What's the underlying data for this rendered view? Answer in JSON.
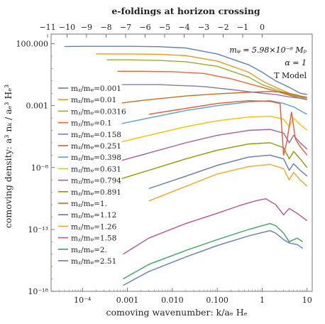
{
  "chart_data": {
    "type": "line",
    "title": "",
    "xlabel": "comoving wavenumber: k/a_e H_e",
    "ylabel": "comoving density: a^3 n_k / a_e^3 H_e^3",
    "top_axis_label": "e-foldings at horizon crossing",
    "x_scale": "log",
    "y_scale": "log",
    "xlim": [
      2e-05,
      13
    ],
    "ylim": [
      1e-18,
      600
    ],
    "x_ticks": [
      {
        "value": 0.0001,
        "label": "10^-4"
      },
      {
        "value": 0.001,
        "label": "0.001"
      },
      {
        "value": 0.01,
        "label": "0.010"
      },
      {
        "value": 0.1,
        "label": "0.100"
      },
      {
        "value": 1,
        "label": "1"
      },
      {
        "value": 10,
        "label": "10"
      }
    ],
    "y_ticks": [
      {
        "value": 100,
        "label": "100.000"
      },
      {
        "value": 0.001,
        "label": "0.001"
      },
      {
        "value": 1e-08,
        "label": "10^-8"
      },
      {
        "value": 1e-13,
        "label": "10^-13"
      },
      {
        "value": 1e-18,
        "label": "10^-18"
      }
    ],
    "top_ticks": [
      {
        "efold": -11,
        "k": 1.67e-05,
        "label": "-11"
      },
      {
        "efold": -10,
        "k": 4.54e-05,
        "label": "-10"
      },
      {
        "efold": -9,
        "k": 0.000123,
        "label": "-9"
      },
      {
        "efold": -8,
        "k": 0.000335,
        "label": "-8"
      },
      {
        "efold": -7,
        "k": 0.000912,
        "label": "-7"
      },
      {
        "efold": -6,
        "k": 0.00248,
        "label": "-6"
      },
      {
        "efold": -5,
        "k": 0.00674,
        "label": "-5"
      },
      {
        "efold": -4,
        "k": 0.0183,
        "label": "-4"
      },
      {
        "efold": -3,
        "k": 0.0498,
        "label": "-3"
      },
      {
        "efold": -2,
        "k": 0.1353,
        "label": "-2"
      },
      {
        "efold": -1,
        "k": 0.3679,
        "label": "-1"
      },
      {
        "efold": 0,
        "k": 1,
        "label": "0"
      }
    ],
    "annotations": [
      "m_φ = 5.98×10^-6 M_p",
      "α = 1",
      "T Model"
    ],
    "legend_position": "left",
    "series": [
      {
        "name": "m_χ/m_φ=0.001",
        "color": "#5e81b5",
        "points": [
          [
            4e-05,
            60
          ],
          [
            0.0002,
            62
          ],
          [
            0.001,
            62
          ],
          [
            0.005,
            58
          ],
          [
            0.02,
            45
          ],
          [
            0.1,
            15
          ],
          [
            0.5,
            2
          ],
          [
            1,
            0.5
          ],
          [
            2,
            0.1
          ],
          [
            4,
            0.03
          ],
          [
            7,
            0.01
          ],
          [
            10,
            0.008
          ]
        ]
      },
      {
        "name": "m_χ/m_φ=0.01",
        "color": "#e19c24",
        "points": [
          [
            0.0002,
            15
          ],
          [
            0.001,
            15
          ],
          [
            0.005,
            14
          ],
          [
            0.02,
            11
          ],
          [
            0.1,
            4
          ],
          [
            0.5,
            0.5
          ],
          [
            1,
            0.1
          ],
          [
            2,
            0.03
          ],
          [
            4,
            0.01
          ],
          [
            7,
            0.006
          ],
          [
            10,
            0.005
          ]
        ]
      },
      {
        "name": "m_χ/m_φ=0.0316",
        "color": "#8fb032",
        "points": [
          [
            0.00035,
            5
          ],
          [
            0.001,
            5
          ],
          [
            0.005,
            4.5
          ],
          [
            0.02,
            3.5
          ],
          [
            0.1,
            1.5
          ],
          [
            0.5,
            0.2
          ],
          [
            1,
            0.05
          ],
          [
            2,
            0.02
          ],
          [
            4,
            0.008
          ],
          [
            7,
            0.005
          ],
          [
            10,
            0.003
          ]
        ]
      },
      {
        "name": "m_χ/m_φ=0.1",
        "color": "#eb6235",
        "points": [
          [
            0.0006,
            0.6
          ],
          [
            0.002,
            0.6
          ],
          [
            0.01,
            0.55
          ],
          [
            0.05,
            0.4
          ],
          [
            0.2,
            0.15
          ],
          [
            1,
            0.03
          ],
          [
            2,
            0.015
          ],
          [
            4,
            0.007
          ],
          [
            7,
            0.004
          ],
          [
            10,
            0.003
          ]
        ]
      },
      {
        "name": "m_χ/m_φ=0.158",
        "color": "#8778b3",
        "points": [
          [
            0.0006,
            0.05
          ],
          [
            0.005,
            0.05
          ],
          [
            0.05,
            0.035
          ],
          [
            0.2,
            0.02
          ],
          [
            1,
            0.01
          ],
          [
            2,
            0.008
          ],
          [
            4,
            0.005
          ],
          [
            7,
            0.004
          ],
          [
            10,
            0.003
          ]
        ]
      },
      {
        "name": "m_χ/m_φ=0.251",
        "color": "#c56e1a",
        "points": [
          [
            0.0006,
            0.0015
          ],
          [
            0.003,
            0.003
          ],
          [
            0.02,
            0.006
          ],
          [
            0.1,
            0.009
          ],
          [
            0.5,
            0.012
          ],
          [
            1.5,
            0.014
          ],
          [
            3,
            0.012
          ],
          [
            6,
            0.007
          ],
          [
            10,
            0.004
          ]
        ]
      },
      {
        "name": "m_χ/m_φ=0.398",
        "color": "#5d9ec7",
        "points": [
          [
            0.0006,
            3e-05
          ],
          [
            0.003,
            0.0001
          ],
          [
            0.02,
            0.0004
          ],
          [
            0.1,
            0.001
          ],
          [
            0.5,
            0.002
          ],
          [
            1.5,
            0.0025
          ],
          [
            3,
            0.0015
          ],
          [
            5,
            0.0008
          ],
          [
            7,
            0.0004
          ],
          [
            10,
            0.0002
          ]
        ]
      },
      {
        "name": "m_χ/m_φ=0.631",
        "color": "#ffbf00",
        "points": [
          [
            0.0006,
            1e-06
          ],
          [
            0.003,
            4e-06
          ],
          [
            0.02,
            2e-05
          ],
          [
            0.1,
            6e-05
          ],
          [
            0.5,
            0.00012
          ],
          [
            1.5,
            0.00014
          ],
          [
            3,
            8e-05
          ],
          [
            4,
            2e-05
          ],
          [
            5,
            0.0001
          ],
          [
            7,
            3e-05
          ],
          [
            10,
            1e-05
          ]
        ]
      },
      {
        "name": "m_χ/m_φ=0.794",
        "color": "#a5609d",
        "points": [
          [
            0.0006,
            3e-08
          ],
          [
            0.003,
            1.5e-07
          ],
          [
            0.02,
            1e-06
          ],
          [
            0.1,
            4e-06
          ],
          [
            0.5,
            1e-05
          ],
          [
            1.5,
            1.2e-05
          ],
          [
            3,
            6e-06
          ],
          [
            4,
            1e-06
          ],
          [
            5,
            4e-06
          ],
          [
            7,
            1e-06
          ],
          [
            10,
            3e-07
          ]
        ]
      },
      {
        "name": "m_χ/m_φ=0.891",
        "color": "#929600",
        "points": [
          [
            0.0006,
            1e-09
          ],
          [
            0.003,
            6e-09
          ],
          [
            0.02,
            5e-08
          ],
          [
            0.1,
            2.5e-07
          ],
          [
            0.5,
            8e-07
          ],
          [
            1.5,
            1e-06
          ],
          [
            3,
            4e-07
          ],
          [
            4,
            5e-08
          ],
          [
            5,
            2e-07
          ],
          [
            7,
            5e-08
          ],
          [
            10,
            1e-08
          ]
        ]
      },
      {
        "name": "m_χ/m_φ=1.",
        "color": "#e95536",
        "points": [
          [
            0.003,
            0.0002
          ],
          [
            0.02,
            0.0006
          ],
          [
            0.1,
            0.0015
          ],
          [
            0.5,
            0.0025
          ],
          [
            1.5,
            0.0022
          ],
          [
            2.5,
            0.0015
          ],
          [
            3,
            1e-07
          ],
          [
            3.5,
            1e-06
          ],
          [
            4.5,
            0.0003
          ],
          [
            5.5,
            2e-06
          ],
          [
            7,
            5e-07
          ],
          [
            10,
            1e-07
          ]
        ]
      },
      {
        "name": "m_χ/m_φ=1.12",
        "color": "#6379b0",
        "points": [
          [
            0.003,
            2e-10
          ],
          [
            0.02,
            2e-09
          ],
          [
            0.1,
            1.5e-08
          ],
          [
            0.5,
            7e-08
          ],
          [
            1.5,
            1e-07
          ],
          [
            3,
            5e-08
          ],
          [
            4,
            6e-09
          ],
          [
            5,
            2e-08
          ],
          [
            7,
            6e-09
          ],
          [
            10,
            2e-09
          ]
        ]
      },
      {
        "name": "m_χ/m_φ=1.26",
        "color": "#f5a623",
        "points": [
          [
            0.003,
            2e-11
          ],
          [
            0.02,
            3e-10
          ],
          [
            0.1,
            3e-09
          ],
          [
            0.5,
            1.2e-08
          ],
          [
            1.5,
            1.8e-08
          ],
          [
            3,
            8e-09
          ],
          [
            4,
            1e-09
          ],
          [
            5,
            4e-09
          ],
          [
            7,
            1e-09
          ],
          [
            10,
            3e-10
          ]
        ]
      },
      {
        "name": "m_χ/m_φ=1.58",
        "color": "#b7558f",
        "points": [
          [
            0.0008,
            1e-15
          ],
          [
            0.003,
            2e-14
          ],
          [
            0.02,
            3e-13
          ],
          [
            0.1,
            2e-12
          ],
          [
            0.3,
            8e-12
          ],
          [
            0.7,
            2e-11
          ],
          [
            1.2,
            3e-11
          ],
          [
            2,
            1e-11
          ],
          [
            3,
            1.5e-12
          ],
          [
            4,
            5e-12
          ],
          [
            6,
            2e-12
          ],
          [
            10,
            5e-13
          ]
        ]
      },
      {
        "name": "m_χ/m_φ=2.",
        "color": "#3ba55c",
        "points": [
          [
            0.0008,
            1e-17
          ],
          [
            0.003,
            1.5e-16
          ],
          [
            0.02,
            2e-15
          ],
          [
            0.1,
            1.5e-14
          ],
          [
            0.5,
            1e-13
          ],
          [
            1.5,
            3e-13
          ],
          [
            2,
            2e-13
          ],
          [
            3,
            5e-14
          ],
          [
            4,
            1e-14
          ],
          [
            6,
            2e-14
          ],
          [
            8,
            1e-14
          ]
        ]
      },
      {
        "name": "m_χ/m_φ=2.51",
        "color": "#5e7bb5",
        "points": [
          [
            0.0008,
            3e-18
          ],
          [
            0.003,
            4e-17
          ],
          [
            0.02,
            6e-16
          ],
          [
            0.1,
            5e-15
          ],
          [
            0.5,
            3e-14
          ],
          [
            1.5,
            8e-14
          ],
          [
            2,
            5e-14
          ],
          [
            3,
            1.5e-14
          ],
          [
            4,
            8e-15
          ],
          [
            6,
            6e-15
          ],
          [
            8,
            3e-15
          ]
        ]
      }
    ]
  }
}
